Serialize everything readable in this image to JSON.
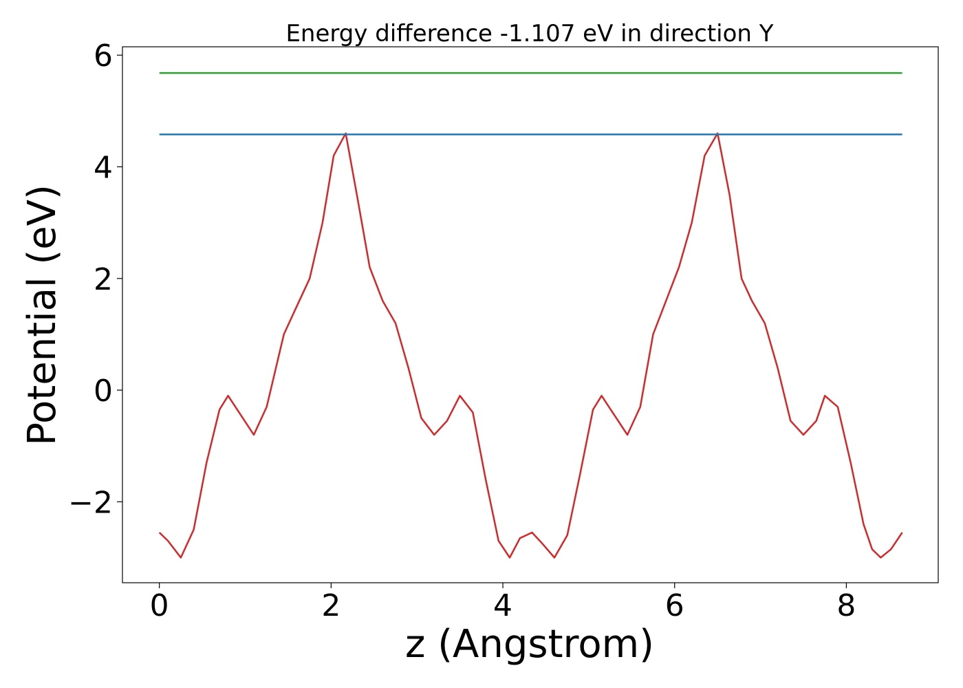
{
  "chart_data": {
    "type": "line",
    "title": "Energy difference -1.107 eV in direction Y",
    "xlabel": "z (Angstrom)",
    "ylabel": "Potential (eV)",
    "xlim": [
      -0.43,
      9.07
    ],
    "ylim": [
      -3.45,
      6.15
    ],
    "xticks": [
      0,
      2,
      4,
      6,
      8
    ],
    "yticks": [
      -2,
      0,
      2,
      4,
      6
    ],
    "xtick_labels": [
      "0",
      "2",
      "4",
      "6",
      "8"
    ],
    "ytick_labels": [
      "−2",
      "0",
      "2",
      "4",
      "6"
    ],
    "grid": false,
    "legend": "none",
    "series": [
      {
        "color": "#d62728",
        "x": [
          0,
          0.1,
          0.25,
          0.4,
          0.55,
          0.7,
          0.8,
          0.95,
          1.1,
          1.25,
          1.45,
          1.6,
          1.75,
          1.9,
          2.03,
          2.17,
          2.3,
          2.45,
          2.6,
          2.75,
          2.9,
          3.05,
          3.2,
          3.35,
          3.5,
          3.65,
          3.8,
          3.95,
          4.08,
          4.2,
          4.34,
          4.46,
          4.6,
          4.75,
          4.9,
          5.05,
          5.15,
          5.3,
          5.45,
          5.6,
          5.75,
          5.9,
          6.05,
          6.2,
          6.35,
          6.5,
          6.64,
          6.78,
          6.9,
          7.05,
          7.2,
          7.35,
          7.5,
          7.65,
          7.75,
          7.9,
          8.05,
          8.2,
          8.3,
          8.4,
          8.52,
          8.65
        ],
        "y": [
          -2.55,
          -2.7,
          -3.0,
          -2.5,
          -1.3,
          -0.35,
          -0.1,
          -0.45,
          -0.8,
          -0.3,
          1.0,
          1.5,
          2.0,
          3.0,
          4.2,
          4.6,
          3.5,
          2.2,
          1.6,
          1.2,
          0.4,
          -0.5,
          -0.8,
          -0.55,
          -0.1,
          -0.4,
          -1.6,
          -2.7,
          -3.0,
          -2.65,
          -2.55,
          -2.75,
          -3.0,
          -2.6,
          -1.5,
          -0.35,
          -0.1,
          -0.45,
          -0.8,
          -0.3,
          1.0,
          1.6,
          2.2,
          3.0,
          4.2,
          4.6,
          3.5,
          2.0,
          1.6,
          1.2,
          0.4,
          -0.55,
          -0.8,
          -0.55,
          -0.1,
          -0.3,
          -1.3,
          -2.4,
          -2.85,
          -3.0,
          -2.85,
          -2.55
        ]
      },
      {
        "color": "#1f77b4",
        "x": [
          0,
          8.65
        ],
        "y": [
          4.58,
          4.58
        ]
      },
      {
        "color": "#2ca02c",
        "x": [
          0,
          8.65
        ],
        "y": [
          5.68,
          5.68
        ]
      }
    ]
  }
}
